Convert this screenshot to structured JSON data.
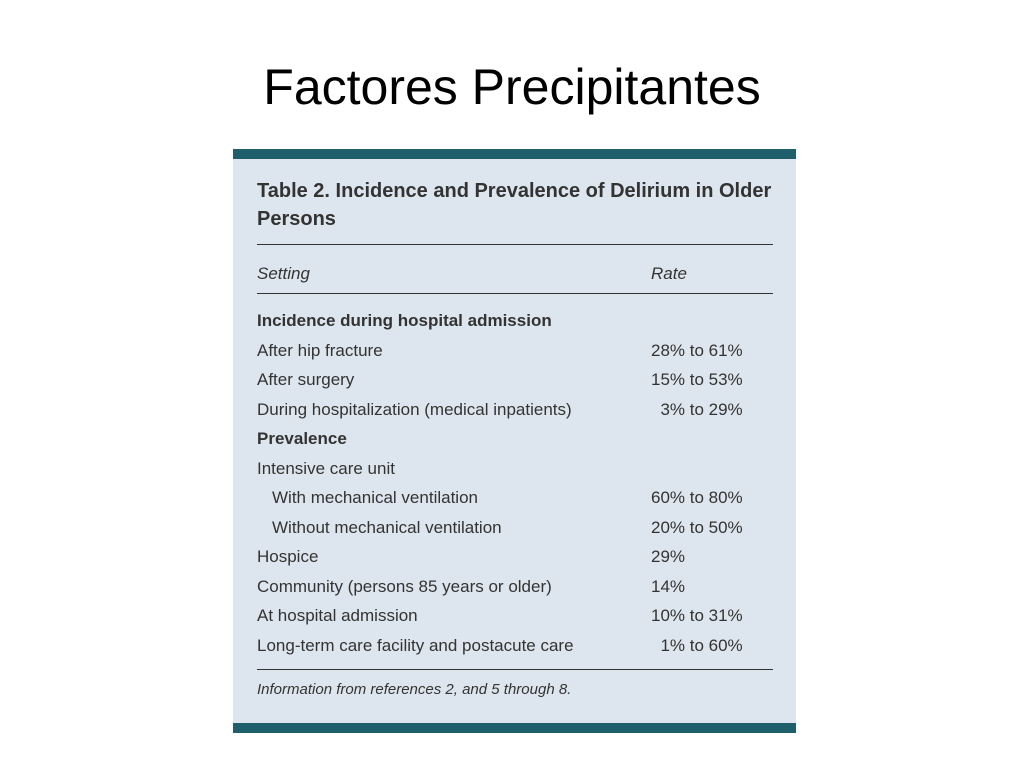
{
  "slide": {
    "title": "Factores Precipitantes"
  },
  "table": {
    "caption": "Table 2. Incidence and Prevalence of Delirium in Older Persons",
    "headers": {
      "setting": "Setting",
      "rate": "Rate"
    },
    "rows": [
      {
        "setting": "Incidence during hospital admission",
        "rate": "",
        "type": "section"
      },
      {
        "setting": "After hip fracture",
        "rate": "28% to 61%",
        "type": "normal"
      },
      {
        "setting": "After surgery",
        "rate": "15% to 53%",
        "type": "normal"
      },
      {
        "setting": "During hospitalization (medical inpatients)",
        "rate": "  3% to 29%",
        "type": "normal"
      },
      {
        "setting": "Prevalence",
        "rate": "",
        "type": "section"
      },
      {
        "setting": "Intensive care unit",
        "rate": "",
        "type": "normal"
      },
      {
        "setting": "With mechanical ventilation",
        "rate": "60% to 80%",
        "type": "indent"
      },
      {
        "setting": "Without mechanical ventilation",
        "rate": "20% to 50%",
        "type": "indent"
      },
      {
        "setting": "Hospice",
        "rate": "29%",
        "type": "normal"
      },
      {
        "setting": "Community (persons 85 years or older)",
        "rate": "14%",
        "type": "normal"
      },
      {
        "setting": "At hospital admission",
        "rate": "10% to 31%",
        "type": "normal"
      },
      {
        "setting": "Long-term care facility and postacute care",
        "rate": "  1% to 60%",
        "type": "normal"
      }
    ],
    "footnote": "Information from references 2, and 5 through 8.",
    "colors": {
      "panel_background": "#dde6ee",
      "band": "#1f5f6b",
      "text": "#333333"
    }
  }
}
